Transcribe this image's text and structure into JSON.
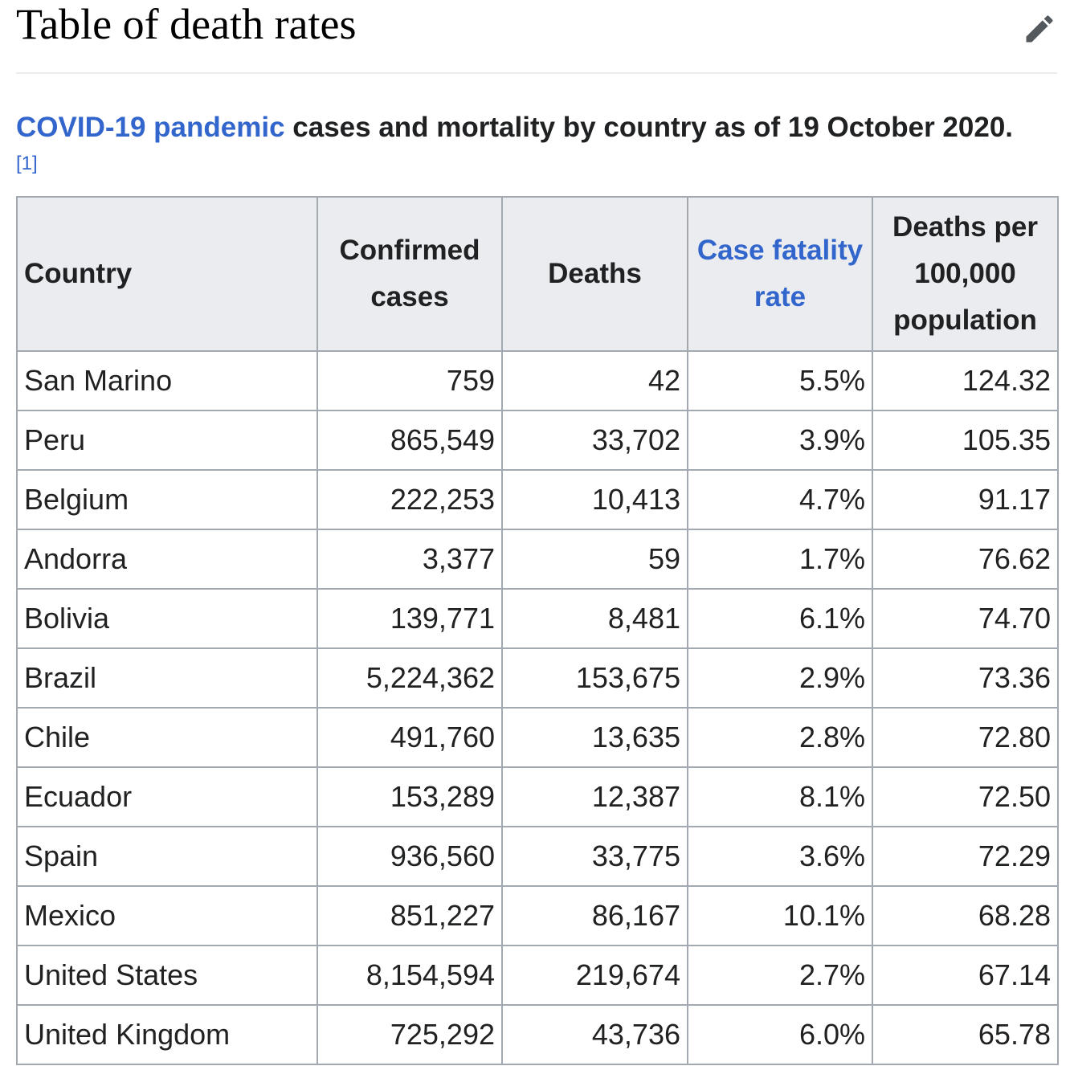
{
  "section": {
    "title": "Table of death rates",
    "edit_icon": "pencil-icon"
  },
  "caption": {
    "link_text": "COVID-19 pandemic",
    "text": " cases and mortality by country as of 19 October 2020.",
    "ref": "[1]"
  },
  "table": {
    "headers": {
      "country": "Country",
      "confirmed_cases": "Confirmed cases",
      "deaths": "Deaths",
      "case_fatality_rate": "Case fatality rate",
      "deaths_per_100k": "Deaths per 100,000 population"
    },
    "rows": [
      {
        "country": "San Marino",
        "cases": "759",
        "deaths": "42",
        "cfr": "5.5%",
        "per100k": "124.32"
      },
      {
        "country": "Peru",
        "cases": "865,549",
        "deaths": "33,702",
        "cfr": "3.9%",
        "per100k": "105.35"
      },
      {
        "country": "Belgium",
        "cases": "222,253",
        "deaths": "10,413",
        "cfr": "4.7%",
        "per100k": "91.17"
      },
      {
        "country": "Andorra",
        "cases": "3,377",
        "deaths": "59",
        "cfr": "1.7%",
        "per100k": "76.62"
      },
      {
        "country": "Bolivia",
        "cases": "139,771",
        "deaths": "8,481",
        "cfr": "6.1%",
        "per100k": "74.70"
      },
      {
        "country": "Brazil",
        "cases": "5,224,362",
        "deaths": "153,675",
        "cfr": "2.9%",
        "per100k": "73.36"
      },
      {
        "country": "Chile",
        "cases": "491,760",
        "deaths": "13,635",
        "cfr": "2.8%",
        "per100k": "72.80"
      },
      {
        "country": "Ecuador",
        "cases": "153,289",
        "deaths": "12,387",
        "cfr": "8.1%",
        "per100k": "72.50"
      },
      {
        "country": "Spain",
        "cases": "936,560",
        "deaths": "33,775",
        "cfr": "3.6%",
        "per100k": "72.29"
      },
      {
        "country": "Mexico",
        "cases": "851,227",
        "deaths": "86,167",
        "cfr": "10.1%",
        "per100k": "68.28"
      },
      {
        "country": "United States",
        "cases": "8,154,594",
        "deaths": "219,674",
        "cfr": "2.7%",
        "per100k": "67.14"
      },
      {
        "country": "United Kingdom",
        "cases": "725,292",
        "deaths": "43,736",
        "cfr": "6.0%",
        "per100k": "65.78"
      }
    ]
  },
  "colors": {
    "link": "#3366cc",
    "header_bg": "#eaecf0",
    "border": "#a2a9b1",
    "text": "#202122"
  }
}
